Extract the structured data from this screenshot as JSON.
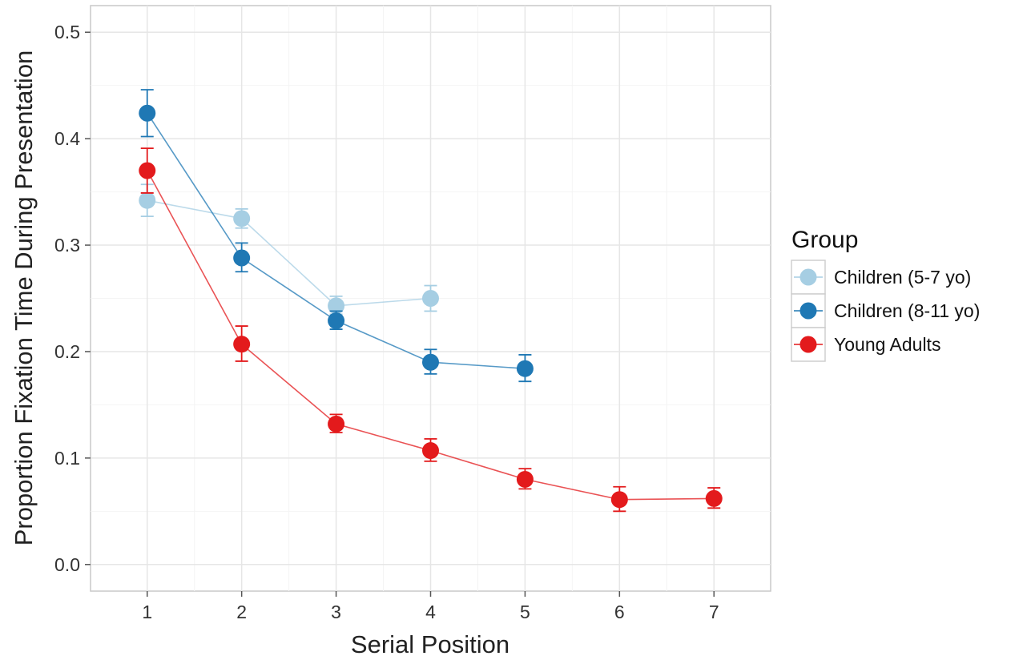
{
  "chart_data": {
    "type": "line",
    "xlabel": "Serial Position",
    "ylabel": "Proportion Fixation Time During Presentation",
    "xlim": [
      0.4,
      7.6
    ],
    "ylim": [
      -0.025,
      0.525
    ],
    "x_ticks": [
      1,
      2,
      3,
      4,
      5,
      6,
      7
    ],
    "y_ticks": [
      0.0,
      0.1,
      0.2,
      0.3,
      0.4,
      0.5
    ],
    "y_tick_labels": [
      "0.0",
      "0.1",
      "0.2",
      "0.3",
      "0.4",
      "0.5"
    ],
    "grid": true,
    "legend": {
      "title": "Group",
      "position": "right"
    },
    "series": [
      {
        "name": "Children (5-7 yo)",
        "color": "#a6cee3",
        "x": [
          1,
          2,
          3,
          4
        ],
        "y": [
          0.342,
          0.325,
          0.243,
          0.25
        ],
        "err_low": [
          0.327,
          0.316,
          0.235,
          0.238
        ],
        "err_high": [
          0.357,
          0.334,
          0.252,
          0.262
        ]
      },
      {
        "name": "Children (8-11 yo)",
        "color": "#1f78b4",
        "x": [
          1,
          2,
          3,
          4,
          5
        ],
        "y": [
          0.424,
          0.288,
          0.229,
          0.19,
          0.184
        ],
        "err_low": [
          0.402,
          0.275,
          0.221,
          0.179,
          0.172
        ],
        "err_high": [
          0.446,
          0.302,
          0.238,
          0.202,
          0.197
        ]
      },
      {
        "name": "Young Adults",
        "color": "#e31a1c",
        "x": [
          1,
          2,
          3,
          4,
          5,
          6,
          7
        ],
        "y": [
          0.37,
          0.207,
          0.132,
          0.107,
          0.08,
          0.061,
          0.062
        ],
        "err_low": [
          0.349,
          0.191,
          0.124,
          0.097,
          0.071,
          0.05,
          0.053
        ],
        "err_high": [
          0.391,
          0.224,
          0.141,
          0.118,
          0.09,
          0.073,
          0.072
        ]
      }
    ]
  }
}
